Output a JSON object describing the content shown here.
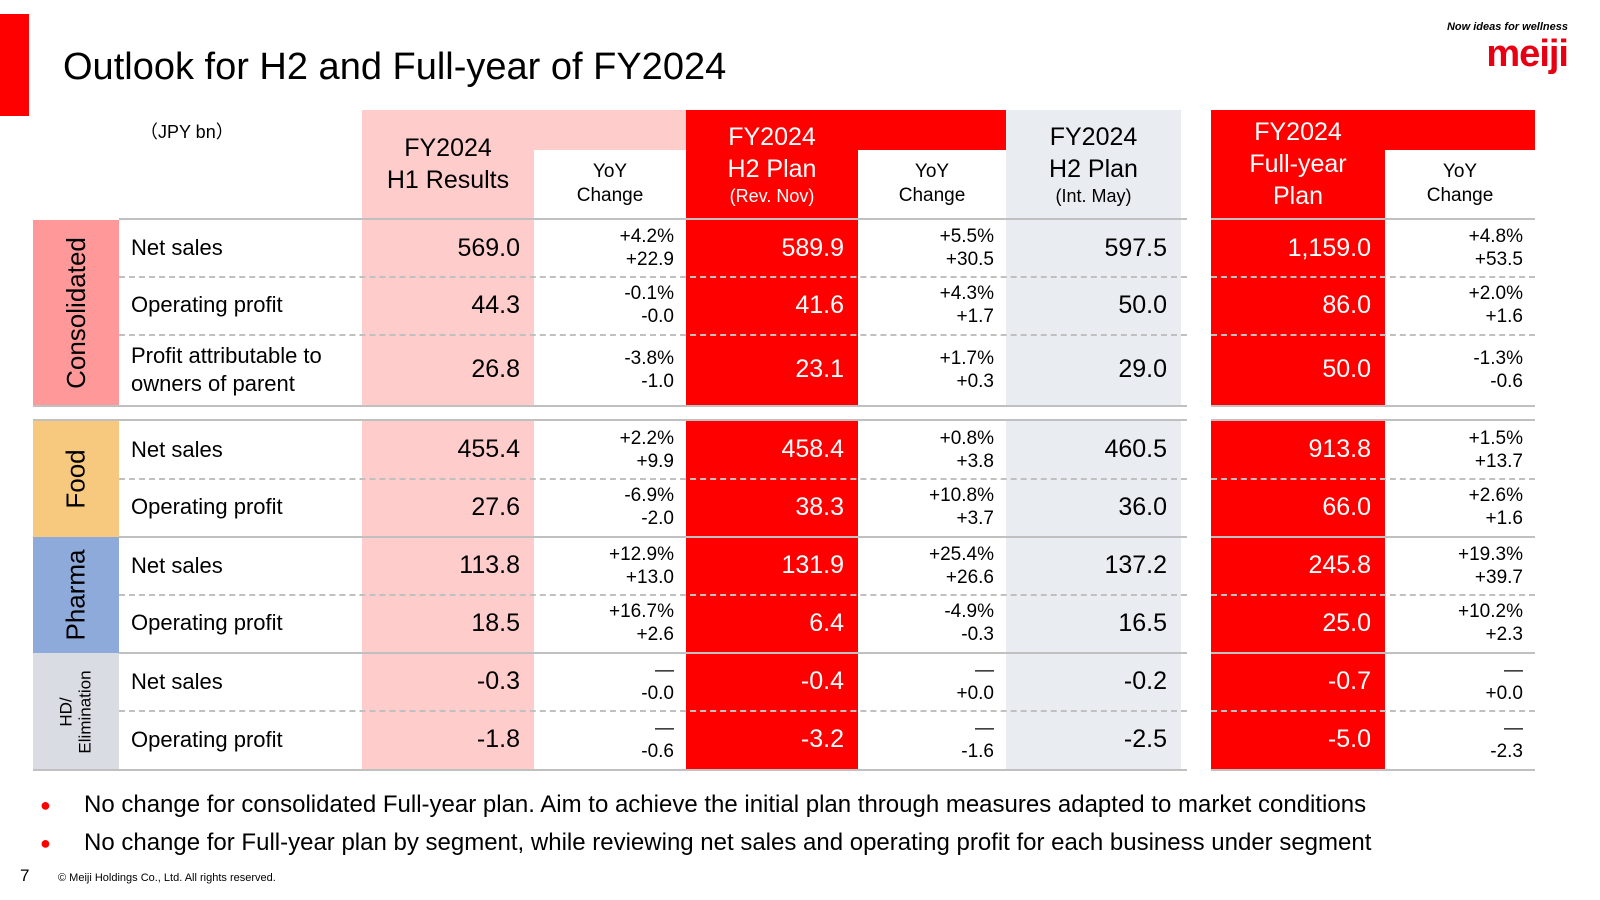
{
  "title": "Outlook for H2 and Full-year of FY2024",
  "logo": {
    "tagline": "Now ideas for wellness",
    "name": "meiji"
  },
  "unit": "（JPY bn）",
  "headers": {
    "h1": {
      "line1": "FY2024",
      "line2": "H1 Results"
    },
    "yoy": {
      "line1": "YoY",
      "line2": "Change"
    },
    "h2rev": {
      "line1": "FY2024",
      "line2": "H2 Plan",
      "line3": "(Rev. Nov)"
    },
    "h2int": {
      "line1": "FY2024",
      "line2": "H2 Plan",
      "line3": "(Int. May)"
    },
    "fy": {
      "line1": "FY2024",
      "line2": "Full-year",
      "line3": "Plan"
    }
  },
  "segments": [
    {
      "label": "Consolidated",
      "rows": [
        {
          "label": "Net sales",
          "h1": "569.0",
          "h1_yoy_pct": "+4.2%",
          "h1_yoy_abs": "+22.9",
          "h2": "589.9",
          "h2_yoy_pct": "+5.5%",
          "h2_yoy_abs": "+30.5",
          "h2_int": "597.5",
          "fy": "1,159.0",
          "fy_yoy_pct": "+4.8%",
          "fy_yoy_abs": "+53.5"
        },
        {
          "label": "Operating profit",
          "h1": "44.3",
          "h1_yoy_pct": "-0.1%",
          "h1_yoy_abs": "-0.0",
          "h2": "41.6",
          "h2_yoy_pct": "+4.3%",
          "h2_yoy_abs": "+1.7",
          "h2_int": "50.0",
          "fy": "86.0",
          "fy_yoy_pct": "+2.0%",
          "fy_yoy_abs": "+1.6"
        },
        {
          "label": "Profit attributable to owners of parent",
          "h1": "26.8",
          "h1_yoy_pct": "-3.8%",
          "h1_yoy_abs": "-1.0",
          "h2": "23.1",
          "h2_yoy_pct": "+1.7%",
          "h2_yoy_abs": "+0.3",
          "h2_int": "29.0",
          "fy": "50.0",
          "fy_yoy_pct": "-1.3%",
          "fy_yoy_abs": "-0.6"
        }
      ]
    },
    {
      "label": "Food",
      "rows": [
        {
          "label": "Net sales",
          "h1": "455.4",
          "h1_yoy_pct": "+2.2%",
          "h1_yoy_abs": "+9.9",
          "h2": "458.4",
          "h2_yoy_pct": "+0.8%",
          "h2_yoy_abs": "+3.8",
          "h2_int": "460.5",
          "fy": "913.8",
          "fy_yoy_pct": "+1.5%",
          "fy_yoy_abs": "+13.7"
        },
        {
          "label": "Operating profit",
          "h1": "27.6",
          "h1_yoy_pct": "-6.9%",
          "h1_yoy_abs": "-2.0",
          "h2": "38.3",
          "h2_yoy_pct": "+10.8%",
          "h2_yoy_abs": "+3.7",
          "h2_int": "36.0",
          "fy": "66.0",
          "fy_yoy_pct": "+2.6%",
          "fy_yoy_abs": "+1.6"
        }
      ]
    },
    {
      "label": "Pharma",
      "rows": [
        {
          "label": "Net sales",
          "h1": "113.8",
          "h1_yoy_pct": "+12.9%",
          "h1_yoy_abs": "+13.0",
          "h2": "131.9",
          "h2_yoy_pct": "+25.4%",
          "h2_yoy_abs": "+26.6",
          "h2_int": "137.2",
          "fy": "245.8",
          "fy_yoy_pct": "+19.3%",
          "fy_yoy_abs": "+39.7"
        },
        {
          "label": "Operating profit",
          "h1": "18.5",
          "h1_yoy_pct": "+16.7%",
          "h1_yoy_abs": "+2.6",
          "h2": "6.4",
          "h2_yoy_pct": "-4.9%",
          "h2_yoy_abs": "-0.3",
          "h2_int": "16.5",
          "fy": "25.0",
          "fy_yoy_pct": "+10.2%",
          "fy_yoy_abs": "+2.3"
        }
      ]
    },
    {
      "label_line1": "HD/",
      "label_line2": "Elimination",
      "rows": [
        {
          "label": "Net sales",
          "h1": "-0.3",
          "h1_yoy_pct": "—",
          "h1_yoy_abs": "-0.0",
          "h2": "-0.4",
          "h2_yoy_pct": "—",
          "h2_yoy_abs": "+0.0",
          "h2_int": "-0.2",
          "fy": "-0.7",
          "fy_yoy_pct": "—",
          "fy_yoy_abs": "+0.0"
        },
        {
          "label": "Operating profit",
          "h1": "-1.8",
          "h1_yoy_pct": "—",
          "h1_yoy_abs": "-0.6",
          "h2": "-3.2",
          "h2_yoy_pct": "—",
          "h2_yoy_abs": "-1.6",
          "h2_int": "-2.5",
          "fy": "-5.0",
          "fy_yoy_pct": "—",
          "fy_yoy_abs": "-2.3"
        }
      ]
    }
  ],
  "bullets": [
    "No change for consolidated Full-year plan. Aim to achieve the initial plan through measures adapted to market conditions",
    "No change for Full-year plan by segment, while reviewing net sales and operating profit for each business under segment"
  ],
  "page_number": "7",
  "copyright": "© Meiji Holdings Co., Ltd. All rights reserved.",
  "colors": {
    "accent_red": "#ff0000",
    "h1_pink": "#ffcccc",
    "int_grey": "#e9edf2",
    "consolidated": "#ff9999",
    "food": "#f7c97e",
    "pharma": "#8eaadb",
    "hd": "#d9dde3"
  }
}
